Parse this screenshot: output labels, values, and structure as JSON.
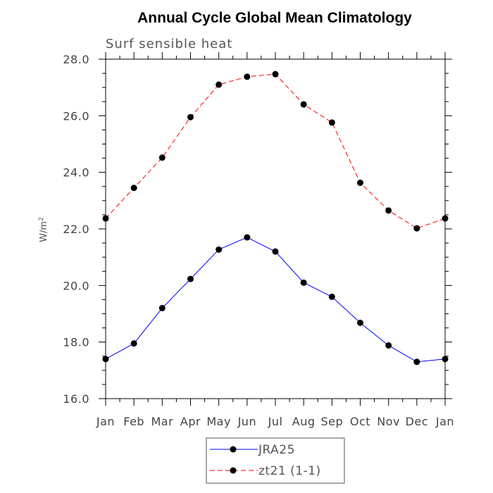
{
  "chart_data": {
    "type": "line",
    "title": "Annual Cycle Global Mean Climatology",
    "subtitle": "Surf sensible heat",
    "xlabel": "",
    "ylabel": "W/m",
    "ylabel_superscript": "2",
    "categories": [
      "Jan",
      "Feb",
      "Mar",
      "Apr",
      "May",
      "Jun",
      "Jul",
      "Aug",
      "Sep",
      "Oct",
      "Nov",
      "Dec",
      "Jan"
    ],
    "ylim": [
      16.0,
      28.0
    ],
    "yticks": [
      "16.0",
      "18.0",
      "20.0",
      "22.0",
      "24.0",
      "26.0",
      "28.0"
    ],
    "grid": false,
    "legend_position": "bottom-center",
    "series": [
      {
        "name": "JRA25",
        "color": "#0000ff",
        "dash": "solid",
        "values": [
          17.4,
          17.95,
          19.2,
          20.23,
          21.27,
          21.7,
          21.2,
          20.1,
          19.6,
          18.68,
          17.88,
          17.3,
          17.4
        ]
      },
      {
        "name": "zt21 (1-1)",
        "color": "#ff0000",
        "dash": "dashed",
        "values": [
          22.37,
          23.45,
          24.52,
          25.95,
          27.1,
          27.38,
          27.47,
          26.4,
          25.76,
          23.63,
          22.65,
          22.02,
          22.37
        ]
      }
    ]
  }
}
